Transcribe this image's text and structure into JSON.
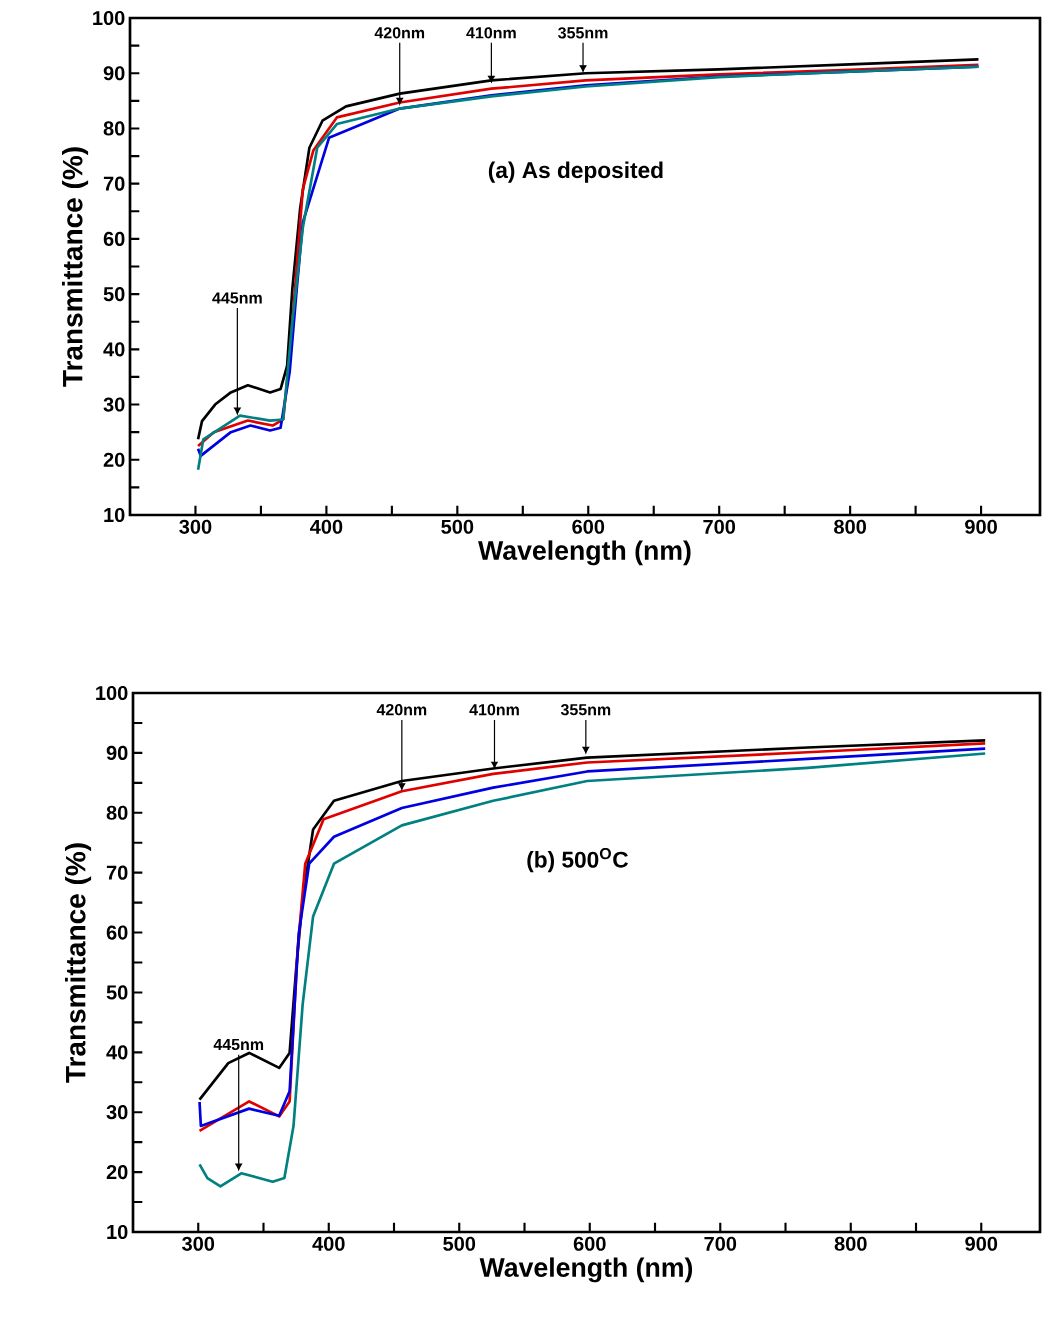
{
  "chart_data": [
    {
      "type": "line",
      "title": "(a) As deposited",
      "xlabel": "Wavelength (nm)",
      "ylabel": "Transmittance (%)",
      "xlim": [
        250,
        945
      ],
      "ylim": [
        10,
        100
      ],
      "xticks": [
        300,
        {
          "value": 350,
          "label": null
        },
        400,
        {
          "value": 450,
          "label": null
        },
        500,
        {
          "value": 550,
          "label": null
        },
        600,
        {
          "value": 650,
          "label": null
        },
        700,
        {
          "value": 750,
          "label": null
        },
        800,
        {
          "value": 850,
          "label": null
        },
        900
      ],
      "yticks": [
        10,
        {
          "value": 15,
          "label": null
        },
        20,
        {
          "value": 25,
          "label": null
        },
        30,
        {
          "value": 35,
          "label": null
        },
        40,
        {
          "value": 45,
          "label": null
        },
        50,
        {
          "value": 55,
          "label": null
        },
        60,
        {
          "value": 65,
          "label": null
        },
        70,
        {
          "value": 75,
          "label": null
        },
        80,
        {
          "value": 85,
          "label": null
        },
        90,
        {
          "value": 95,
          "label": null
        },
        100
      ],
      "grid": false,
      "marker": "none",
      "line_style": "solid",
      "series": [
        {
          "color": "#000000",
          "x": [
            302,
            305,
            315,
            327,
            340,
            357,
            365,
            370,
            374,
            380,
            387,
            397,
            415,
            456,
            526,
            598,
            700,
            800,
            898
          ],
          "values": [
            23.7,
            27,
            30,
            32.2,
            33.5,
            32.2,
            32.8,
            37,
            51,
            65.6,
            76.5,
            81.4,
            84,
            86.3,
            88.7,
            90,
            90.7,
            91.6,
            92.5
          ]
        },
        {
          "color": "#e00000",
          "x": [
            302,
            314,
            340,
            359,
            367,
            372,
            377,
            382,
            390,
            408,
            456,
            526,
            598,
            700,
            800,
            898
          ],
          "values": [
            22.5,
            25,
            27.1,
            26.2,
            27.3,
            39,
            54,
            69,
            76,
            82,
            84.7,
            87.2,
            88.7,
            89.8,
            90.6,
            91.5
          ]
        },
        {
          "color": "#0000e0",
          "x": [
            302,
            304,
            327,
            342,
            357,
            365,
            372,
            377,
            382,
            402,
            456,
            526,
            598,
            700,
            800,
            898
          ],
          "values": [
            22,
            20.7,
            25,
            26.2,
            25.3,
            25.8,
            36,
            50,
            63,
            78.3,
            83.6,
            86,
            87.8,
            89.4,
            90.3,
            91.2
          ]
        },
        {
          "color": "#008080",
          "x": [
            302,
            306,
            334,
            357,
            367,
            374,
            382,
            393,
            408,
            456,
            526,
            598,
            700,
            800,
            898
          ],
          "values": [
            18.2,
            23.7,
            28,
            27.1,
            27.3,
            45,
            62,
            76.5,
            80.8,
            83.6,
            85.8,
            87.6,
            89.3,
            90.3,
            91.2
          ]
        }
      ],
      "annotations": [
        {
          "text": "420nm",
          "x": 456,
          "y": 84.1
        },
        {
          "text": "410nm",
          "x": 526,
          "y": 88.1
        },
        {
          "text": "355nm",
          "x": 596,
          "y": 90
        },
        {
          "text": "445nm",
          "x": 332,
          "y": 28
        }
      ]
    },
    {
      "type": "line",
      "title": "(b)  500$^{O}$C",
      "xlabel": "Wavelength (nm)",
      "ylabel": "Transmittance (%)",
      "xlim": [
        250,
        945
      ],
      "ylim": [
        10,
        100
      ],
      "xticks": [
        300,
        {
          "value": 350,
          "label": null
        },
        400,
        {
          "value": 450,
          "label": null
        },
        500,
        {
          "value": 550,
          "label": null
        },
        600,
        {
          "value": 650,
          "label": null
        },
        700,
        {
          "value": 750,
          "label": null
        },
        800,
        {
          "value": 850,
          "label": null
        },
        900
      ],
      "yticks": [
        10,
        {
          "value": 15,
          "label": null
        },
        20,
        {
          "value": 25,
          "label": null
        },
        30,
        {
          "value": 35,
          "label": null
        },
        40,
        {
          "value": 45,
          "label": null
        },
        50,
        {
          "value": 55,
          "label": null
        },
        60,
        {
          "value": 65,
          "label": null
        },
        70,
        {
          "value": 75,
          "label": null
        },
        80,
        {
          "value": 85,
          "label": null
        },
        90,
        {
          "value": 95,
          "label": null
        },
        100
      ],
      "grid": false,
      "marker": "none",
      "line_style": "solid",
      "series": [
        {
          "color": "#000000",
          "x": [
            301,
            323,
            339,
            362,
            370,
            375,
            380,
            388,
            404,
            456,
            526,
            598,
            767,
            903
          ],
          "values": [
            32.1,
            38.2,
            39.9,
            37.4,
            39.9,
            53.9,
            65.6,
            77.2,
            82,
            85.3,
            87.4,
            89.2,
            90.9,
            92.1
          ]
        },
        {
          "color": "#e00000",
          "x": [
            301,
            339,
            362,
            370,
            376,
            382,
            396,
            456,
            526,
            598,
            767,
            903
          ],
          "values": [
            26.9,
            31.8,
            29.3,
            31.8,
            56.8,
            71.5,
            78.9,
            83.6,
            86.5,
            88.4,
            90.1,
            91.6
          ]
        },
        {
          "color": "#0000e0",
          "x": [
            301,
            302,
            339,
            362,
            370,
            377,
            385,
            404,
            456,
            526,
            598,
            767,
            903
          ],
          "values": [
            31.7,
            27.7,
            30.6,
            29.4,
            33.5,
            59.8,
            71.5,
            76,
            80.8,
            84.2,
            86.9,
            89,
            90.7
          ]
        },
        {
          "color": "#008080",
          "x": [
            301,
            307,
            317,
            333,
            357,
            366,
            373,
            380,
            388,
            404,
            456,
            526,
            598,
            767,
            903
          ],
          "values": [
            21.3,
            19,
            17.6,
            19.8,
            18.4,
            19,
            27.7,
            48,
            62.7,
            71.5,
            77.9,
            82,
            85.3,
            87.5,
            89.9
          ]
        }
      ],
      "annotations": [
        {
          "text": "420nm",
          "x": 456,
          "y": 83.6
        },
        {
          "text": "410nm",
          "x": 527,
          "y": 87.2
        },
        {
          "text": "355nm",
          "x": 597,
          "y": 89.7
        },
        {
          "text": "445nm",
          "x": 331,
          "y": 20.1
        }
      ]
    }
  ]
}
